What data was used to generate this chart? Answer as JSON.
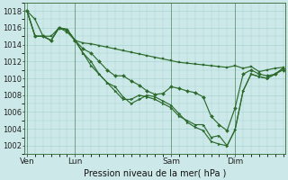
{
  "background_color": "#cce8e8",
  "grid_color": "#aad4d4",
  "line_color": "#2d6b2d",
  "title": "Pression niveau de la mer( hPa )",
  "ylim": [
    1001,
    1019
  ],
  "yticks": [
    1002,
    1004,
    1006,
    1008,
    1010,
    1012,
    1014,
    1016,
    1018
  ],
  "xtick_labels": [
    "Ven",
    "Lun",
    "Sam",
    "Dim"
  ],
  "xtick_positions": [
    0,
    6,
    18,
    26
  ],
  "vline_positions": [
    0,
    6,
    18,
    26
  ],
  "n_points": 33,
  "xlim": [
    -0.3,
    32.3
  ],
  "line1_y": [
    1018,
    1017,
    1015,
    1015,
    1016,
    1015.5,
    1014.5,
    1014.2,
    1014.1,
    1013.9,
    1013.7,
    1013.5,
    1013.3,
    1013.1,
    1012.9,
    1012.7,
    1012.5,
    1012.3,
    1012.1,
    1011.9,
    1011.8,
    1011.7,
    1011.6,
    1011.5,
    1011.4,
    1011.3,
    1011.5,
    1011.2,
    1011.4,
    1010.8,
    1011.0,
    1011.2,
    1011.3
  ],
  "line2_y": [
    1018,
    1015,
    1015,
    1014.5,
    1016,
    1015.8,
    1014.5,
    1013.5,
    1013,
    1012,
    1011,
    1010.3,
    1010.3,
    1009.7,
    1009.2,
    1008.5,
    1008.1,
    1008.2,
    1009,
    1008.8,
    1008.5,
    1008.3,
    1007.8,
    1005.5,
    1004.5,
    1003.8,
    1006.5,
    1010.5,
    1011,
    1010.5,
    1010.3,
    1010.5,
    1011
  ],
  "line3_y": [
    1018,
    1015,
    1015,
    1014.5,
    1016,
    1015.8,
    1014.5,
    1013,
    1012,
    1010.5,
    1009.5,
    1008.5,
    1007.5,
    1007.5,
    1008,
    1007.8,
    1007.5,
    1007,
    1006.5,
    1005.5,
    1005,
    1004.5,
    1004.5,
    1003,
    1003.2,
    1002,
    1003.9,
    1008.5,
    1010.5,
    1010.2,
    1010.0,
    1010.5,
    1011.2
  ],
  "line4_y": [
    1018,
    1015,
    1015,
    1014.5,
    1016,
    1015.8,
    1014.5,
    1013,
    1011.5,
    1010.5,
    1009.5,
    1009,
    1007.8,
    1007,
    1007.5,
    1008,
    1007.8,
    1007.3,
    1006.8,
    1005.8,
    1004.8,
    1004.2,
    1003.8,
    1002.5,
    1002.2,
    1002,
    1003.9,
    1008.5,
    1010.5,
    1010.2,
    1010.0,
    1010.5,
    1011.2
  ]
}
